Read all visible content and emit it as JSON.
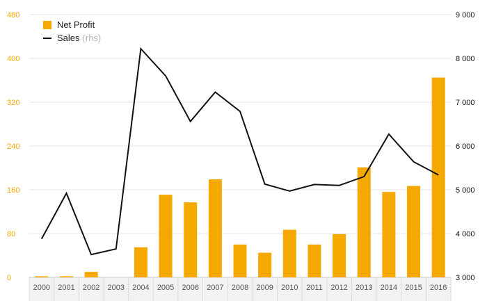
{
  "chart_data": {
    "type": "bar",
    "categories": [
      "2000",
      "2001",
      "2002",
      "2003",
      "2004",
      "2005",
      "2006",
      "2007",
      "2008",
      "2009",
      "2010",
      "2011",
      "2012",
      "2013",
      "2014",
      "2015",
      "2016"
    ],
    "series": [
      {
        "name": "Net Profit",
        "type": "bar",
        "axis": "left",
        "values": [
          2,
          2,
          10,
          0,
          55,
          151,
          137,
          179,
          60,
          45,
          87,
          60,
          79,
          201,
          156,
          167,
          365
        ]
      },
      {
        "name": "Sales",
        "name_suffix": "(rhs)",
        "type": "line",
        "axis": "right",
        "values": [
          3880,
          4920,
          3520,
          3650,
          8220,
          7600,
          6560,
          7230,
          6790,
          5130,
          4970,
          5120,
          5100,
          5300,
          6270,
          5640,
          5340
        ]
      }
    ],
    "y_left": {
      "ylim": [
        0,
        480
      ],
      "ticks": [
        "0",
        "80",
        "160",
        "240",
        "320",
        "400",
        "480"
      ]
    },
    "y_right": {
      "ylim": [
        3000,
        9000
      ],
      "ticks": [
        "3 000",
        "4 000",
        "5 000",
        "6 000",
        "7 000",
        "8 000",
        "9 000"
      ]
    },
    "grid": true,
    "legend_position": "top-left",
    "colors": {
      "bar": "#f5a800",
      "line": "#111111",
      "grid": "#e6e6e6",
      "axis_band": "#f2f2f2"
    }
  }
}
